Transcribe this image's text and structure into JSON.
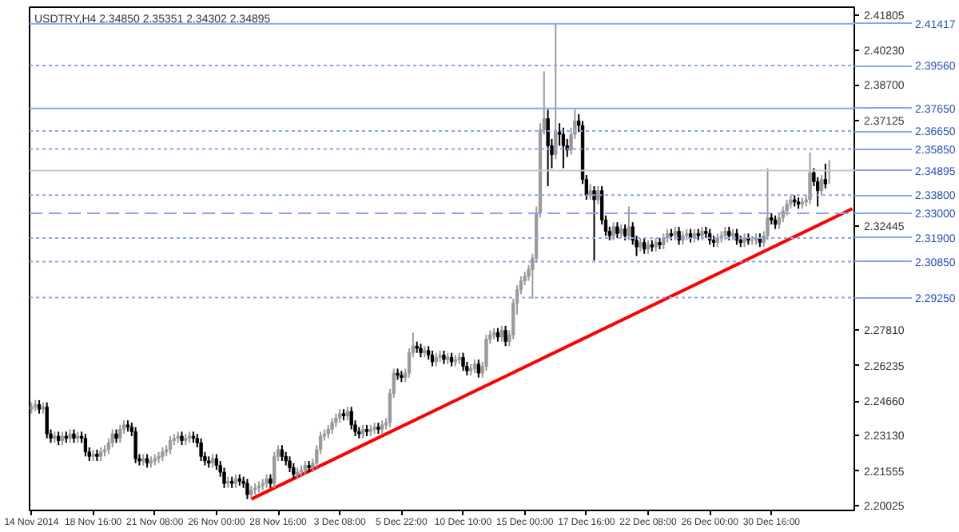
{
  "chart_data": {
    "type": "candlestick",
    "title": "USDTRY,H4  2.34850 2.35351 2.34302 2.34895",
    "colors": [
      "#9a9a9a",
      "#9a9a9a",
      "#000000",
      "#9a9a9a",
      "#000000",
      "#000000",
      "#9a9a9a",
      "#000000",
      "#9a9a9a",
      "#000000",
      "#9a9a9a",
      "#000000",
      "#9a9a9a",
      "#000000",
      "#000000",
      "#000000",
      "#9a9a9a",
      "#000000",
      "#9a9a9a",
      "#9a9a9a",
      "#9a9a9a",
      "#9a9a9a",
      "#000000",
      "#9a9a9a",
      "#9a9a9a",
      "#000000",
      "#000000",
      "#000000",
      "#000000",
      "#9a9a9a",
      "#000000",
      "#9a9a9a",
      "#9a9a9a",
      "#9a9a9a",
      "#9a9a9a",
      "#9a9a9a",
      "#9a9a9a",
      "#9a9a9a",
      "#9a9a9a",
      "#000000",
      "#9a9a9a",
      "#9a9a9a",
      "#000000",
      "#000000",
      "#000000",
      "#000000",
      "#000000",
      "#9a9a9a",
      "#000000",
      "#000000",
      "#000000",
      "#9a9a9a",
      "#000000",
      "#9a9a9a",
      "#000000",
      "#000000",
      "#000000",
      "#9a9a9a",
      "#9a9a9a",
      "#9a9a9a",
      "#9a9a9a",
      "#9a9a9a",
      "#000000",
      "#9a9a9a",
      "#9a9a9a",
      "#000000",
      "#000000",
      "#000000",
      "#000000",
      "#9a9a9a",
      "#9a9a9a",
      "#9a9a9a",
      "#000000",
      "#9a9a9a",
      "#9a9a9a",
      "#9a9a9a",
      "#9a9a9a",
      "#9a9a9a",
      "#9a9a9a",
      "#9a9a9a",
      "#9a9a9a",
      "#000000",
      "#9a9a9a",
      "#000000",
      "#000000",
      "#000000",
      "#9a9a9a",
      "#000000",
      "#9a9a9a",
      "#9a9a9a",
      "#000000",
      "#9a9a9a",
      "#9a9a9a",
      "#9a9a9a",
      "#9a9a9a",
      "#000000",
      "#000000",
      "#9a9a9a",
      "#9a9a9a",
      "#9a9a9a",
      "#000000",
      "#000000",
      "#9a9a9a",
      "#000000",
      "#000000",
      "#9a9a9a",
      "#9a9a9a",
      "#000000",
      "#9a9a9a",
      "#000000",
      "#9a9a9a",
      "#9a9a9a",
      "#000000",
      "#000000",
      "#9a9a9a",
      "#9a9a9a",
      "#000000",
      "#9a9a9a",
      "#9a9a9a",
      "#9a9a9a",
      "#9a9a9a",
      "#000000",
      "#9a9a9a",
      "#000000",
      "#9a9a9a",
      "#9a9a9a",
      "#9a9a9a",
      "#9a9a9a",
      "#9a9a9a",
      "#9a9a9a",
      "#9a9a9a",
      "#9a9a9a",
      "#9a9a9a",
      "#9a9a9a",
      "#000000",
      "#000000",
      "#9a9a9a",
      "#000000",
      "#000000",
      "#000000",
      "#9a9a9a",
      "#9a9a9a",
      "#000000",
      "#000000",
      "#000000",
      "#9a9a9a",
      "#000000",
      "#9a9a9a",
      "#000000",
      "#000000",
      "#000000",
      "#9a9a9a",
      "#000000",
      "#9a9a9a",
      "#000000",
      "#9a9a9a",
      "#000000",
      "#000000",
      "#9a9a9a",
      "#000000",
      "#9a9a9a",
      "#000000",
      "#9a9a9a",
      "#000000",
      "#9a9a9a",
      "#9a9a9a",
      "#000000",
      "#9a9a9a",
      "#000000",
      "#9a9a9a",
      "#9a9a9a",
      "#000000",
      "#9a9a9a",
      "#000000",
      "#9a9a9a",
      "#000000",
      "#000000",
      "#000000",
      "#9a9a9a",
      "#9a9a9a",
      "#9a9a9a",
      "#000000",
      "#9a9a9a",
      "#000000",
      "#000000",
      "#9a9a9a",
      "#000000",
      "#9a9a9a",
      "#9a9a9a",
      "#000000",
      "#9a9a9a",
      "#9a9a9a",
      "#000000",
      "#000000",
      "#9a9a9a",
      "#9a9a9a",
      "#9a9a9a",
      "#9a9a9a",
      "#000000",
      "#000000",
      "#9a9a9a",
      "#9a9a9a",
      "#9a9a9a",
      "#000000",
      "#000000",
      "#9a9a9a",
      "#000000",
      "#9a9a9a",
      null,
      null,
      null,
      null,
      null,
      null
    ],
    "categories": [
      "14 Nov 2014",
      null,
      null,
      null,
      null,
      null,
      null,
      null,
      null,
      null,
      null,
      null,
      null,
      null,
      null,
      null,
      "18 Nov 16:00",
      null,
      null,
      null,
      null,
      null,
      null,
      null,
      null,
      null,
      null,
      null,
      null,
      null,
      null,
      null,
      "21 Nov 08:00",
      null,
      null,
      null,
      null,
      null,
      null,
      null,
      null,
      null,
      null,
      null,
      null,
      null,
      null,
      null,
      "26 Nov 00:00",
      null,
      null,
      null,
      null,
      null,
      null,
      null,
      null,
      null,
      null,
      null,
      null,
      null,
      null,
      null,
      "28 Nov 16:00",
      null,
      null,
      null,
      null,
      null,
      null,
      null,
      null,
      null,
      null,
      null,
      null,
      null,
      null,
      null,
      "3 Dec 08:00",
      null,
      null,
      null,
      null,
      null,
      null,
      null,
      null,
      null,
      null,
      null,
      null,
      null,
      null,
      null,
      "5 Dec 22:00",
      null,
      null,
      null,
      null,
      null,
      null,
      null,
      null,
      null,
      null,
      null,
      null,
      null,
      null,
      null,
      "10 Dec 10:00",
      null,
      null,
      null,
      null,
      null,
      null,
      null,
      null,
      null,
      null,
      null,
      null,
      null,
      null,
      null,
      "15 Dec 00:00",
      null,
      null,
      null,
      null,
      null,
      null,
      null,
      null,
      null,
      null,
      null,
      null,
      null,
      null,
      null,
      "17 Dec 16:00",
      null,
      null,
      null,
      null,
      null,
      null,
      null,
      null,
      null,
      null,
      null,
      null,
      null,
      null,
      null,
      "22 Dec 08:00",
      null,
      null,
      null,
      null,
      null,
      null,
      null,
      null,
      null,
      null,
      null,
      null,
      null,
      null,
      null,
      "26 Dec 00:00",
      null,
      null,
      null,
      null,
      null,
      null,
      null,
      null,
      null,
      null,
      null,
      null,
      null,
      null,
      null,
      "30 Dec 16:00",
      null,
      null,
      null,
      null,
      null,
      null,
      null,
      null,
      null,
      null,
      null,
      null,
      null,
      null,
      null,
      null,
      null,
      null,
      null,
      null,
      null
    ],
    "ohlc": [
      [
        2.243,
        2.246,
        2.241,
        2.244
      ],
      [
        2.244,
        2.247,
        2.242,
        2.245
      ],
      [
        2.245,
        2.247,
        2.241,
        2.243
      ],
      [
        2.243,
        2.246,
        2.241,
        2.244
      ],
      [
        2.244,
        2.246,
        2.23,
        2.232
      ],
      [
        2.232,
        2.234,
        2.228,
        2.23
      ],
      [
        2.23,
        2.233,
        2.228,
        2.231
      ],
      [
        2.231,
        2.233,
        2.227,
        2.229
      ],
      [
        2.229,
        2.233,
        2.227,
        2.231
      ],
      [
        2.231,
        2.233,
        2.228,
        2.23
      ],
      [
        2.23,
        2.234,
        2.228,
        2.232
      ],
      [
        2.232,
        2.234,
        2.228,
        2.23
      ],
      [
        2.23,
        2.233,
        2.228,
        2.231
      ],
      [
        2.231,
        2.233,
        2.228,
        2.23
      ],
      [
        2.23,
        2.232,
        2.222,
        2.224
      ],
      [
        2.224,
        2.226,
        2.22,
        2.222
      ],
      [
        2.222,
        2.225,
        2.22,
        2.223
      ],
      [
        2.223,
        2.225,
        2.22,
        2.222
      ],
      [
        2.222,
        2.226,
        2.22,
        2.224
      ],
      [
        2.224,
        2.227,
        2.222,
        2.225
      ],
      [
        2.225,
        2.23,
        2.223,
        2.228
      ],
      [
        2.228,
        2.234,
        2.226,
        2.232
      ],
      [
        2.232,
        2.234,
        2.228,
        2.23
      ],
      [
        2.23,
        2.236,
        2.228,
        2.234
      ],
      [
        2.234,
        2.238,
        2.232,
        2.236
      ],
      [
        2.236,
        2.238,
        2.233,
        2.235
      ],
      [
        2.235,
        2.237,
        2.231,
        2.233
      ],
      [
        2.233,
        2.235,
        2.219,
        2.221
      ],
      [
        2.221,
        2.223,
        2.218,
        2.22
      ],
      [
        2.22,
        2.223,
        2.218,
        2.221
      ],
      [
        2.221,
        2.223,
        2.217,
        2.219
      ],
      [
        2.219,
        2.222,
        2.217,
        2.22
      ],
      [
        2.22,
        2.223,
        2.218,
        2.221
      ],
      [
        2.221,
        2.224,
        2.219,
        2.222
      ],
      [
        2.222,
        2.226,
        2.22,
        2.224
      ],
      [
        2.224,
        2.227,
        2.222,
        2.225
      ],
      [
        2.225,
        2.231,
        2.223,
        2.229
      ],
      [
        2.229,
        2.232,
        2.227,
        2.23
      ],
      [
        2.23,
        2.233,
        2.228,
        2.231
      ],
      [
        2.231,
        2.233,
        2.227,
        2.229
      ],
      [
        2.229,
        2.232,
        2.227,
        2.23
      ],
      [
        2.23,
        2.233,
        2.228,
        2.231
      ],
      [
        2.231,
        2.233,
        2.228,
        2.23
      ],
      [
        2.23,
        2.232,
        2.226,
        2.228
      ],
      [
        2.228,
        2.23,
        2.22,
        2.222
      ],
      [
        2.222,
        2.224,
        2.218,
        2.22
      ],
      [
        2.22,
        2.222,
        2.217,
        2.219
      ],
      [
        2.219,
        2.223,
        2.217,
        2.221
      ],
      [
        2.221,
        2.223,
        2.216,
        2.218
      ],
      [
        2.218,
        2.22,
        2.213,
        2.215
      ],
      [
        2.215,
        2.217,
        2.208,
        2.21
      ],
      [
        2.21,
        2.213,
        2.208,
        2.211
      ],
      [
        2.211,
        2.213,
        2.208,
        2.21
      ],
      [
        2.21,
        2.214,
        2.208,
        2.212
      ],
      [
        2.212,
        2.214,
        2.209,
        2.211
      ],
      [
        2.211,
        2.213,
        2.208,
        2.21
      ],
      [
        2.21,
        2.212,
        2.203,
        2.205
      ],
      [
        2.205,
        2.209,
        2.203,
        2.207
      ],
      [
        2.207,
        2.21,
        2.205,
        2.208
      ],
      [
        2.208,
        2.211,
        2.206,
        2.209
      ],
      [
        2.209,
        2.212,
        2.207,
        2.21
      ],
      [
        2.21,
        2.214,
        2.208,
        2.212
      ],
      [
        2.212,
        2.214,
        2.208,
        2.21
      ],
      [
        2.21,
        2.224,
        2.208,
        2.222
      ],
      [
        2.222,
        2.227,
        2.22,
        2.225
      ],
      [
        2.225,
        2.227,
        2.22,
        2.222
      ],
      [
        2.222,
        2.224,
        2.218,
        2.22
      ],
      [
        2.22,
        2.222,
        2.215,
        2.217
      ],
      [
        2.217,
        2.219,
        2.212,
        2.214
      ],
      [
        2.214,
        2.217,
        2.212,
        2.215
      ],
      [
        2.215,
        2.218,
        2.213,
        2.216
      ],
      [
        2.216,
        2.22,
        2.214,
        2.218
      ],
      [
        2.218,
        2.22,
        2.215,
        2.217
      ],
      [
        2.217,
        2.221,
        2.215,
        2.219
      ],
      [
        2.219,
        2.227,
        2.217,
        2.225
      ],
      [
        2.225,
        2.233,
        2.223,
        2.231
      ],
      [
        2.231,
        2.234,
        2.229,
        2.232
      ],
      [
        2.232,
        2.236,
        2.23,
        2.234
      ],
      [
        2.234,
        2.239,
        2.232,
        2.237
      ],
      [
        2.237,
        2.241,
        2.235,
        2.239
      ],
      [
        2.239,
        2.243,
        2.237,
        2.241
      ],
      [
        2.241,
        2.243,
        2.238,
        2.24
      ],
      [
        2.24,
        2.244,
        2.238,
        2.242
      ],
      [
        2.242,
        2.244,
        2.234,
        2.236
      ],
      [
        2.236,
        2.238,
        2.231,
        2.233
      ],
      [
        2.233,
        2.235,
        2.23,
        2.232
      ],
      [
        2.232,
        2.236,
        2.23,
        2.234
      ],
      [
        2.234,
        2.236,
        2.231,
        2.233
      ],
      [
        2.233,
        2.236,
        2.231,
        2.234
      ],
      [
        2.234,
        2.237,
        2.232,
        2.235
      ],
      [
        2.235,
        2.237,
        2.232,
        2.234
      ],
      [
        2.234,
        2.238,
        2.232,
        2.236
      ],
      [
        2.236,
        2.239,
        2.234,
        2.237
      ],
      [
        2.237,
        2.252,
        2.235,
        2.25
      ],
      [
        2.25,
        2.261,
        2.248,
        2.259
      ],
      [
        2.259,
        2.261,
        2.256,
        2.258
      ],
      [
        2.258,
        2.26,
        2.255,
        2.257
      ],
      [
        2.257,
        2.261,
        2.255,
        2.259
      ],
      [
        2.259,
        2.27,
        2.257,
        2.268
      ],
      [
        2.268,
        2.277,
        2.266,
        2.271
      ],
      [
        2.271,
        2.273,
        2.268,
        2.27
      ],
      [
        2.27,
        2.272,
        2.266,
        2.268
      ],
      [
        2.268,
        2.271,
        2.266,
        2.269
      ],
      [
        2.269,
        2.271,
        2.265,
        2.267
      ],
      [
        2.267,
        2.269,
        2.262,
        2.264
      ],
      [
        2.264,
        2.268,
        2.262,
        2.266
      ],
      [
        2.266,
        2.269,
        2.264,
        2.267
      ],
      [
        2.267,
        2.269,
        2.263,
        2.265
      ],
      [
        2.265,
        2.268,
        2.263,
        2.266
      ],
      [
        2.266,
        2.268,
        2.262,
        2.264
      ],
      [
        2.264,
        2.267,
        2.262,
        2.265
      ],
      [
        2.265,
        2.268,
        2.263,
        2.266
      ],
      [
        2.266,
        2.268,
        2.26,
        2.262
      ],
      [
        2.262,
        2.264,
        2.258,
        2.26
      ],
      [
        2.26,
        2.263,
        2.258,
        2.261
      ],
      [
        2.261,
        2.265,
        2.259,
        2.263
      ],
      [
        2.263,
        2.265,
        2.257,
        2.259
      ],
      [
        2.259,
        2.264,
        2.257,
        2.262
      ],
      [
        2.262,
        2.276,
        2.26,
        2.274
      ],
      [
        2.274,
        2.278,
        2.272,
        2.276
      ],
      [
        2.276,
        2.279,
        2.274,
        2.277
      ],
      [
        2.277,
        2.279,
        2.273,
        2.275
      ],
      [
        2.275,
        2.28,
        2.273,
        2.278
      ],
      [
        2.278,
        2.28,
        2.271,
        2.273
      ],
      [
        2.273,
        2.278,
        2.271,
        2.276
      ],
      [
        2.276,
        2.292,
        2.274,
        2.29
      ],
      [
        2.29,
        2.298,
        2.285,
        2.296
      ],
      [
        2.296,
        2.302,
        2.294,
        2.3
      ],
      [
        2.3,
        2.304,
        2.298,
        2.302
      ],
      [
        2.302,
        2.307,
        2.3,
        2.305
      ],
      [
        2.305,
        2.312,
        2.292,
        2.31
      ],
      [
        2.31,
        2.333,
        2.308,
        2.33
      ],
      [
        2.33,
        2.37,
        2.328,
        2.367
      ],
      [
        2.367,
        2.393,
        2.365,
        2.372
      ],
      [
        2.372,
        2.376,
        2.342,
        2.36
      ],
      [
        2.36,
        2.363,
        2.35,
        2.356
      ],
      [
        2.356,
        2.414,
        2.354,
        2.366
      ],
      [
        2.366,
        2.37,
        2.36,
        2.365
      ],
      [
        2.365,
        2.368,
        2.35,
        2.36
      ],
      [
        2.36,
        2.363,
        2.355,
        2.358
      ],
      [
        2.358,
        2.368,
        2.356,
        2.365
      ],
      [
        2.365,
        2.376,
        2.363,
        2.371
      ],
      [
        2.371,
        2.374,
        2.366,
        2.369
      ],
      [
        2.369,
        2.371,
        2.343,
        2.345
      ],
      [
        2.345,
        2.347,
        2.336,
        2.338
      ],
      [
        2.338,
        2.343,
        2.336,
        2.34
      ],
      [
        2.34,
        2.342,
        2.309,
        2.336
      ],
      [
        2.336,
        2.342,
        2.334,
        2.34
      ],
      [
        2.34,
        2.342,
        2.325,
        2.327
      ],
      [
        2.327,
        2.329,
        2.32,
        2.322
      ],
      [
        2.322,
        2.324,
        2.318,
        2.32
      ],
      [
        2.32,
        2.326,
        2.318,
        2.324
      ],
      [
        2.324,
        2.326,
        2.319,
        2.321
      ],
      [
        2.321,
        2.325,
        2.319,
        2.323
      ],
      [
        2.323,
        2.325,
        2.318,
        2.32
      ],
      [
        2.32,
        2.333,
        2.318,
        2.324
      ],
      [
        2.324,
        2.326,
        2.316,
        2.318
      ],
      [
        2.318,
        2.32,
        2.311,
        2.315
      ],
      [
        2.315,
        2.319,
        2.313,
        2.317
      ],
      [
        2.317,
        2.319,
        2.312,
        2.314
      ],
      [
        2.314,
        2.318,
        2.312,
        2.316
      ],
      [
        2.316,
        2.318,
        2.313,
        2.315
      ],
      [
        2.315,
        2.319,
        2.313,
        2.317
      ],
      [
        2.317,
        2.319,
        2.314,
        2.316
      ],
      [
        2.316,
        2.321,
        2.314,
        2.319
      ],
      [
        2.319,
        2.323,
        2.317,
        2.321
      ],
      [
        2.321,
        2.323,
        2.318,
        2.32
      ],
      [
        2.32,
        2.324,
        2.318,
        2.322
      ],
      [
        2.322,
        2.324,
        2.316,
        2.318
      ],
      [
        2.318,
        2.322,
        2.316,
        2.32
      ],
      [
        2.32,
        2.323,
        2.318,
        2.321
      ],
      [
        2.321,
        2.323,
        2.317,
        2.319
      ],
      [
        2.319,
        2.323,
        2.317,
        2.321
      ],
      [
        2.321,
        2.323,
        2.318,
        2.32
      ],
      [
        2.32,
        2.324,
        2.318,
        2.322
      ],
      [
        2.322,
        2.324,
        2.319,
        2.321
      ],
      [
        2.321,
        2.323,
        2.316,
        2.318
      ],
      [
        2.318,
        2.32,
        2.315,
        2.317
      ],
      [
        2.317,
        2.321,
        2.315,
        2.319
      ],
      [
        2.319,
        2.322,
        2.317,
        2.32
      ],
      [
        2.32,
        2.324,
        2.318,
        2.322
      ],
      [
        2.322,
        2.324,
        2.318,
        2.32
      ],
      [
        2.32,
        2.323,
        2.318,
        2.321
      ],
      [
        2.321,
        2.323,
        2.316,
        2.318
      ],
      [
        2.318,
        2.32,
        2.315,
        2.317
      ],
      [
        2.317,
        2.321,
        2.315,
        2.319
      ],
      [
        2.319,
        2.321,
        2.316,
        2.318
      ],
      [
        2.318,
        2.32,
        2.316,
        2.318
      ],
      [
        2.318,
        2.321,
        2.316,
        2.319
      ],
      [
        2.319,
        2.321,
        2.315,
        2.317
      ],
      [
        2.317,
        2.322,
        2.315,
        2.32
      ],
      [
        2.32,
        2.35,
        2.318,
        2.328
      ],
      [
        2.328,
        2.33,
        2.325,
        2.327
      ],
      [
        2.327,
        2.329,
        2.323,
        2.325
      ],
      [
        2.325,
        2.33,
        2.323,
        2.328
      ],
      [
        2.328,
        2.333,
        2.326,
        2.331
      ],
      [
        2.331,
        2.336,
        2.329,
        2.334
      ],
      [
        2.334,
        2.338,
        2.332,
        2.336
      ],
      [
        2.336,
        2.338,
        2.333,
        2.335
      ],
      [
        2.335,
        2.337,
        2.332,
        2.334
      ],
      [
        2.334,
        2.337,
        2.332,
        2.335
      ],
      [
        2.335,
        2.338,
        2.333,
        2.336
      ],
      [
        2.336,
        2.357,
        2.334,
        2.348
      ],
      [
        2.348,
        2.35,
        2.342,
        2.344
      ],
      [
        2.344,
        2.346,
        2.333,
        2.34
      ],
      [
        2.34,
        2.347,
        2.338,
        2.345
      ],
      [
        2.345,
        2.352,
        2.341,
        2.343
      ],
      [
        2.3485,
        2.35351,
        2.34302,
        2.34895
      ],
      null,
      null,
      null,
      null,
      null,
      null
    ],
    "series": [
      {
        "type": "line",
        "color": "#ff0000",
        "values": [
          null,
          null,
          null,
          null,
          null,
          null,
          null,
          null,
          null,
          null,
          null,
          null,
          null,
          null,
          null,
          null,
          null,
          null,
          null,
          null,
          null,
          null,
          null,
          null,
          null,
          null,
          null,
          null,
          null,
          null,
          null,
          null,
          null,
          null,
          null,
          null,
          null,
          null,
          null,
          null,
          null,
          null,
          null,
          null,
          null,
          null,
          null,
          null,
          null,
          null,
          null,
          null,
          null,
          null,
          null,
          null,
          null,
          2.203,
          null,
          null,
          null,
          null,
          null,
          null,
          null,
          null,
          null,
          null,
          null,
          null,
          null,
          null,
          null,
          null,
          null,
          null,
          null,
          null,
          null,
          null,
          null,
          null,
          null,
          null,
          null,
          null,
          null,
          null,
          null,
          null,
          null,
          null,
          null,
          null,
          null,
          null,
          null,
          null,
          null,
          null,
          null,
          null,
          null,
          null,
          null,
          null,
          null,
          null,
          null,
          null,
          null,
          null,
          null,
          null,
          null,
          null,
          null,
          null,
          null,
          null,
          null,
          null,
          null,
          null,
          null,
          null,
          null,
          null,
          null,
          null,
          null,
          null,
          null,
          null,
          null,
          null,
          null,
          null,
          null,
          null,
          null,
          null,
          null,
          null,
          null,
          null,
          null,
          null,
          null,
          null,
          null,
          null,
          null,
          null,
          null,
          null,
          null,
          null,
          null,
          null,
          null,
          null,
          null,
          null,
          null,
          null,
          null,
          null,
          null,
          null,
          null,
          null,
          null,
          null,
          null,
          null,
          null,
          null,
          null,
          null,
          null,
          null,
          null,
          null,
          null,
          null,
          null,
          null,
          null,
          null,
          null,
          null,
          null,
          null,
          null,
          null,
          null,
          null,
          null,
          null,
          null,
          null,
          null,
          null,
          null,
          null,
          null,
          null,
          null,
          null,
          null,
          null,
          null,
          2.332
        ]
      }
    ],
    "ylim": [
      2.198,
      2.4215
    ],
    "yticks": [
      {
        "value": 2.20025,
        "label": "2.20025"
      },
      {
        "value": 2.21555,
        "label": "2.21555"
      },
      {
        "value": 2.2313,
        "label": "2.23130"
      },
      {
        "value": 2.2466,
        "label": "2.24660"
      },
      {
        "value": 2.26235,
        "label": "2.26235"
      },
      {
        "value": 2.2781,
        "label": "2.27810"
      },
      {
        "value": 2.32445,
        "label": "2.32445"
      },
      {
        "value": 2.37125,
        "label": "2.37125"
      },
      {
        "value": 2.387,
        "label": "2.38700"
      },
      {
        "value": 2.4023,
        "label": "2.40230"
      },
      {
        "value": 2.41805,
        "label": "2.41805"
      }
    ],
    "ref_lines": [
      {
        "axis": "y",
        "value": 2.41417,
        "label": "2.41417",
        "color": "#8aa4ef",
        "line_style": "solid"
      },
      {
        "axis": "y",
        "value": 2.3956,
        "label": "2.39560",
        "color": "#8aa4ef",
        "line_style": "dotted"
      },
      {
        "axis": "y",
        "value": 2.3765,
        "label": "2.37650",
        "color": "#8aa4ef",
        "line_style": "solid"
      },
      {
        "axis": "y",
        "value": 2.3665,
        "label": "2.36650",
        "color": "#8aa4ef",
        "line_style": "dotted"
      },
      {
        "axis": "y",
        "value": 2.3585,
        "label": "2.35850",
        "color": "#8aa4ef",
        "line_style": "dotted"
      },
      {
        "axis": "y",
        "value": 2.34895,
        "label": "2.34895",
        "color": "#c8c8c8",
        "line_style": "solid"
      },
      {
        "axis": "y",
        "value": 2.338,
        "label": "2.33800",
        "color": "#8aa4ef",
        "line_style": "dotted"
      },
      {
        "axis": "y",
        "value": 2.33,
        "label": "2.33000",
        "color": "#8aa4ef",
        "line_style": "dashed"
      },
      {
        "axis": "y",
        "value": 2.319,
        "label": "2.31900",
        "color": "#8aa4ef",
        "line_style": "dotted"
      },
      {
        "axis": "y",
        "value": 2.3085,
        "label": "2.30850",
        "color": "#8aa4ef",
        "line_style": "dotted"
      },
      {
        "axis": "y",
        "value": 2.2925,
        "label": "2.29250",
        "color": "#8aa4ef",
        "line_style": "dotted"
      }
    ]
  }
}
